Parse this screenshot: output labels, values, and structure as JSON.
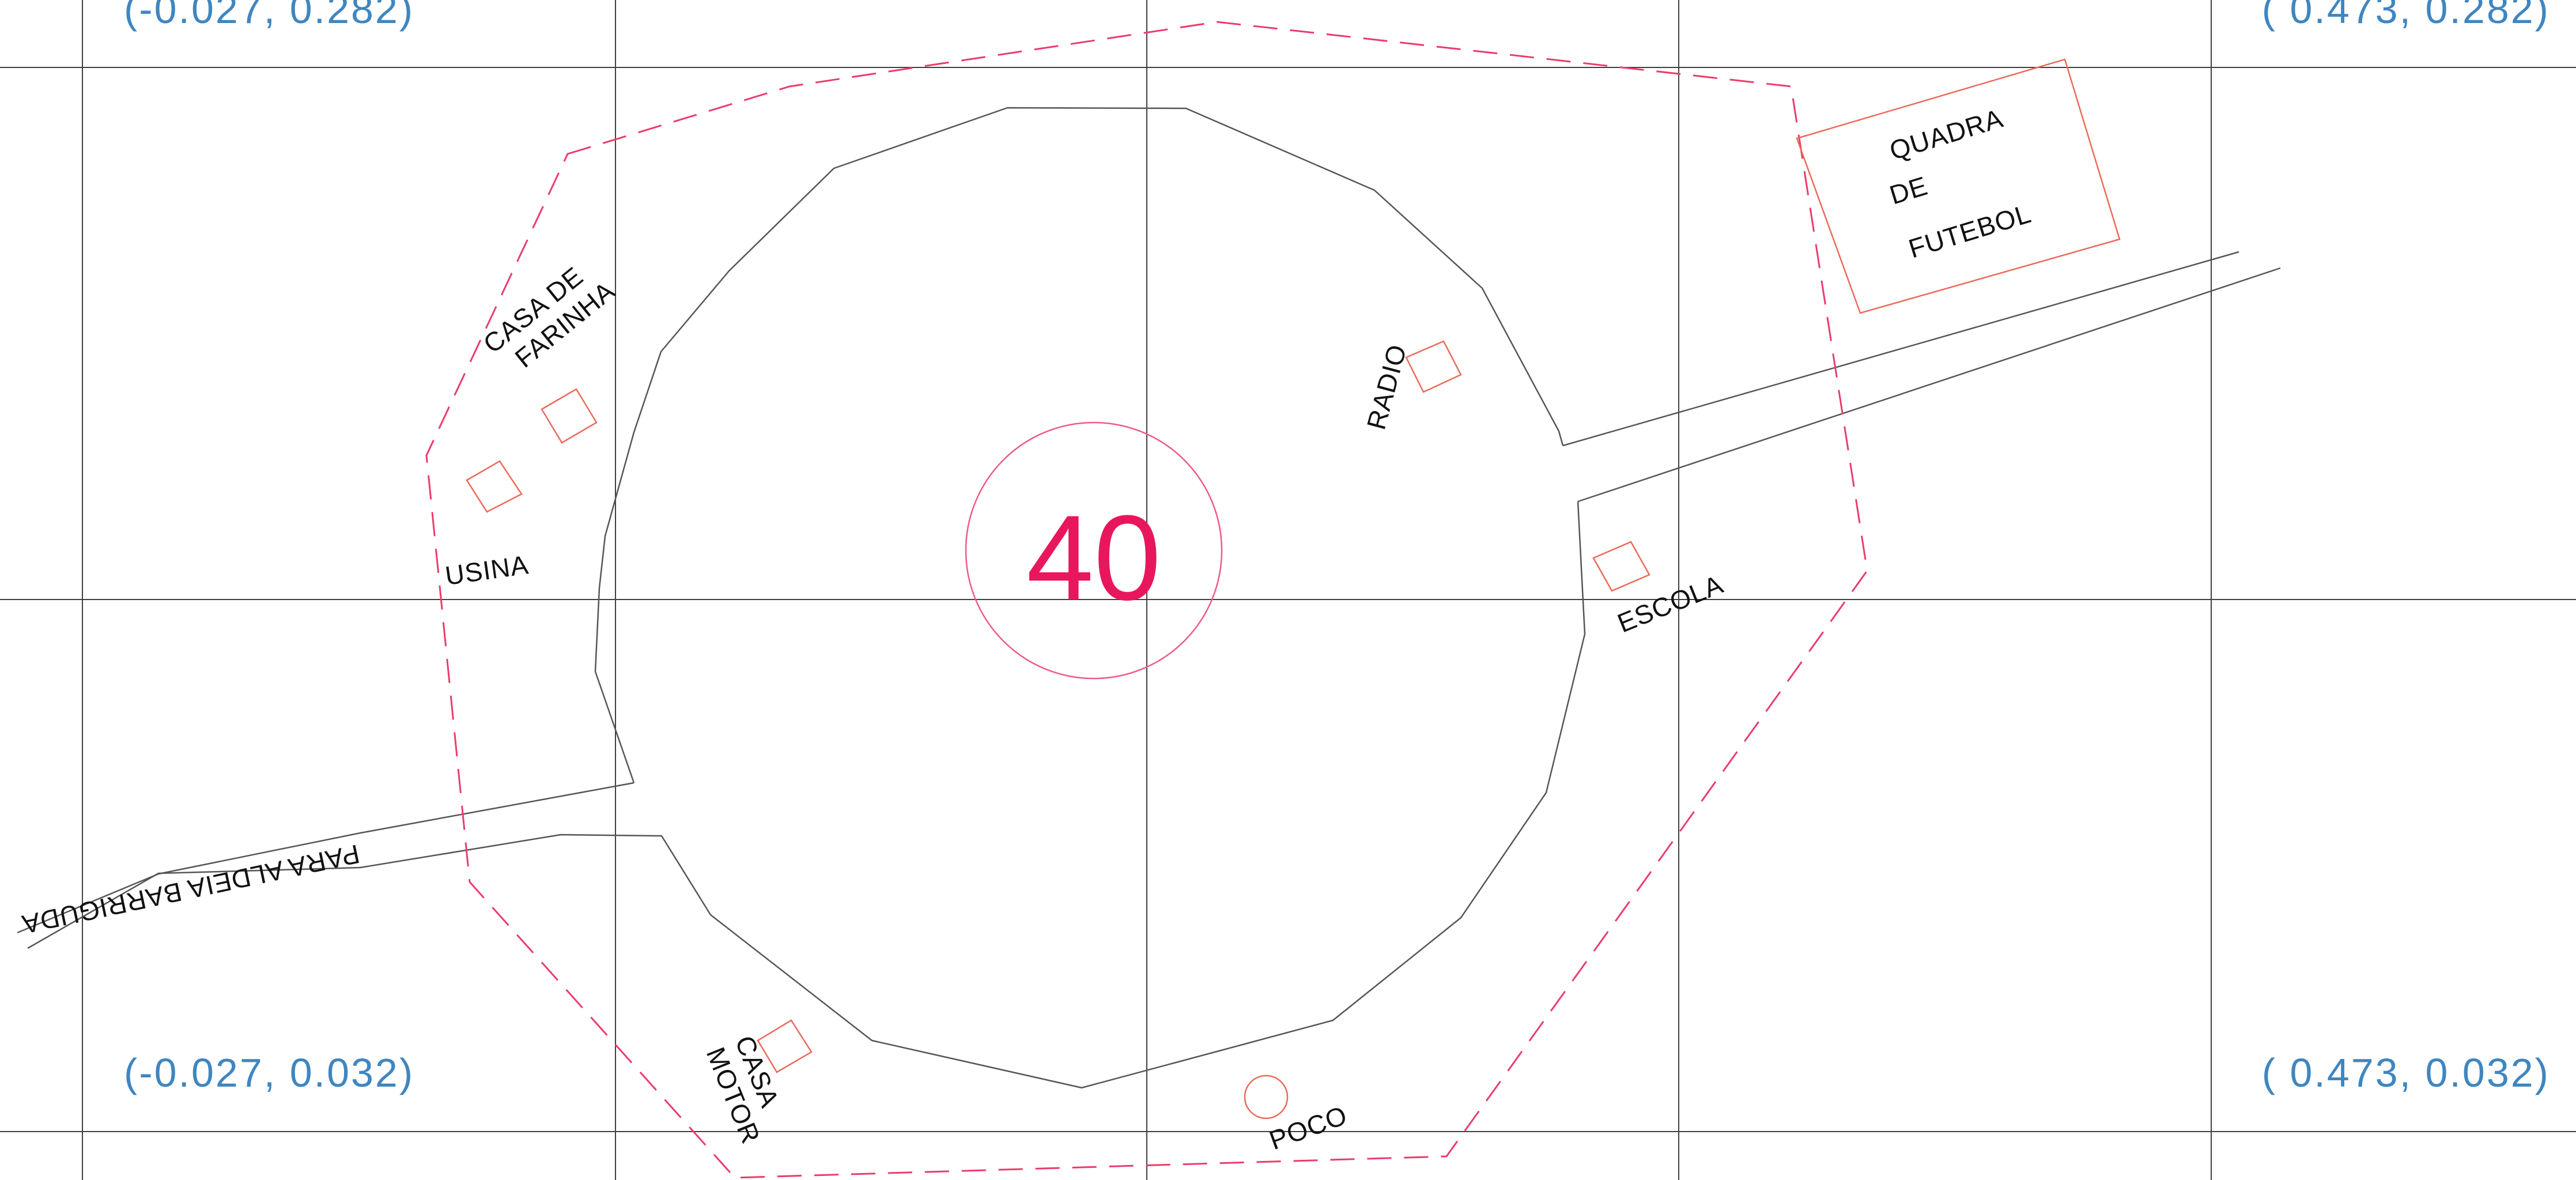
{
  "village_number": "40",
  "corner_coordinates": {
    "top_left": "(-0.027,  0.282)",
    "top_right": "( 0.473,  0.282)",
    "bottom_left": "(-0.027,  0.032)",
    "bottom_right": "( 0.473,  0.032)"
  },
  "labels": {
    "casa_de_farinha_line1": "CASA DE",
    "casa_de_farinha_line2": "FARINHA",
    "usina": "USINA",
    "radio": "RADIO",
    "quadra_line1": "QUADRA",
    "quadra_line2": "DE",
    "quadra_line3": "FUTEBOL",
    "escola": "ESCOLA",
    "para_aldeia_barriguda": "PARA ALDEIA BARRIGUDA",
    "casa_motor_line1": "CASA",
    "casa_motor_line2": "MOTOR",
    "poco": "POCO"
  },
  "colors": {
    "boundary": "#ea3c6b",
    "building": "#ea6a5a",
    "road": "#555555",
    "grid": "#3f3f3f",
    "coordinate_text": "#3f86c0",
    "village_number": "#e8175d"
  }
}
